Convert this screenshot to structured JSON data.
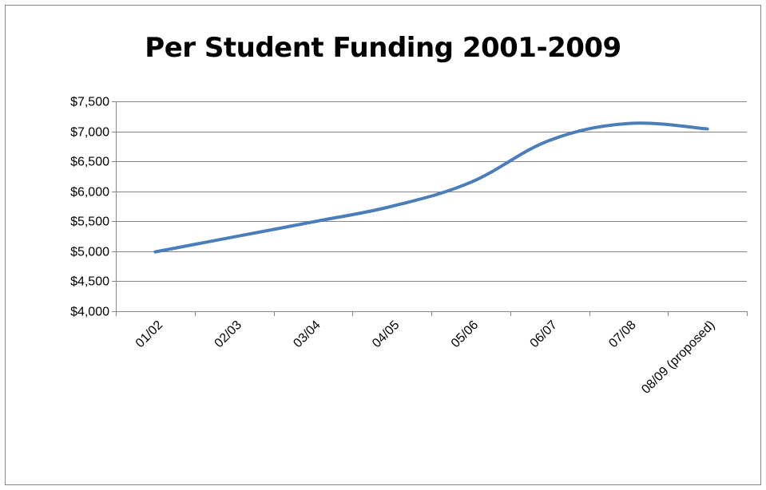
{
  "chart_data": {
    "type": "line",
    "title": "Per Student Funding 2001-2009",
    "xlabel": "",
    "ylabel": "",
    "categories": [
      "01/02",
      "02/03",
      "03/04",
      "04/05",
      "05/06",
      "06/07",
      "07/08",
      "08/09 (proposed)"
    ],
    "series": [
      {
        "values": [
          4990,
          5240,
          5490,
          5750,
          6150,
          6850,
          7130,
          7040
        ],
        "color": "#4a7ebb"
      }
    ],
    "ylim": [
      4000,
      7500
    ],
    "yticks": [
      4000,
      4500,
      5000,
      5500,
      6000,
      6500,
      7000,
      7500
    ],
    "ytick_labels": [
      "$4,000",
      "$4,500",
      "$5,000",
      "$5,500",
      "$6,000",
      "$6,500",
      "$7,000",
      "$7,500"
    ],
    "grid": "horizontal",
    "legend": "none"
  }
}
